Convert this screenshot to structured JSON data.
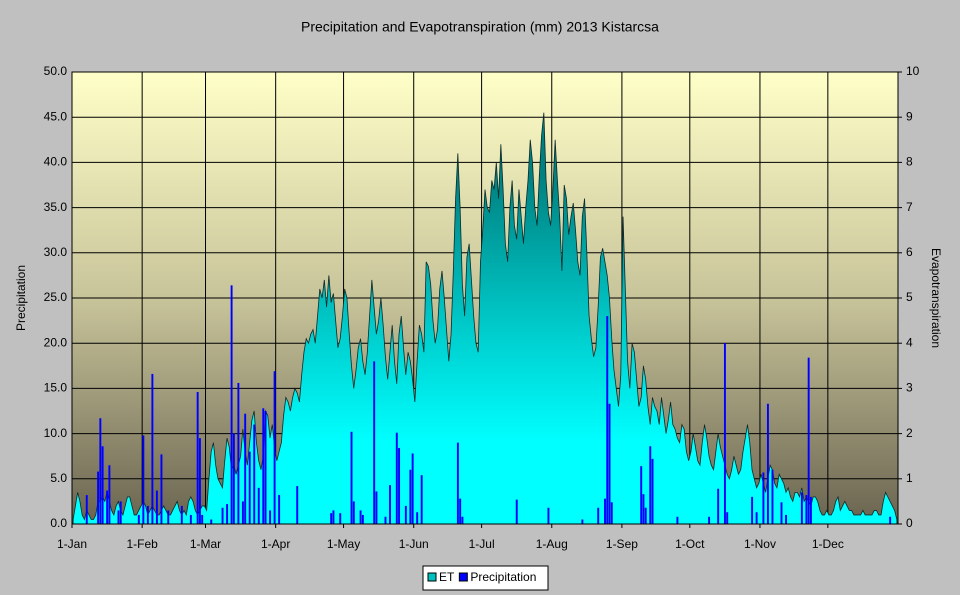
{
  "chart_data": {
    "type": "area-bar",
    "title": "Precipitation and Evapotranspiration (mm) 2013 Kistarcsa",
    "y_label": "Precipitation",
    "y2_label": "Evapotranspiration",
    "xlim": [
      1,
      366
    ],
    "xticks": [
      {
        "value": 1,
        "label": "1-Jan"
      },
      {
        "value": 32,
        "label": "1-Feb"
      },
      {
        "value": 60,
        "label": "1-Mar"
      },
      {
        "value": 91,
        "label": "1-Apr"
      },
      {
        "value": 121,
        "label": "1-May"
      },
      {
        "value": 152,
        "label": "1-Jun"
      },
      {
        "value": 182,
        "label": "1-Jul"
      },
      {
        "value": 213,
        "label": "1-Aug"
      },
      {
        "value": 244,
        "label": "1-Sep"
      },
      {
        "value": 274,
        "label": "1-Oct"
      },
      {
        "value": 305,
        "label": "1-Nov"
      },
      {
        "value": 335,
        "label": "1-Dec"
      }
    ],
    "ylim": [
      0,
      50
    ],
    "yticks": [
      {
        "value": 0,
        "label": "0.0"
      },
      {
        "value": 5,
        "label": "5.0"
      },
      {
        "value": 10,
        "label": "10.0"
      },
      {
        "value": 15,
        "label": "15.0"
      },
      {
        "value": 20,
        "label": "20.0"
      },
      {
        "value": 25,
        "label": "25.0"
      },
      {
        "value": 30,
        "label": "30.0"
      },
      {
        "value": 35,
        "label": "35.0"
      },
      {
        "value": 40,
        "label": "40.0"
      },
      {
        "value": 45,
        "label": "45.0"
      },
      {
        "value": 50,
        "label": "50.0"
      }
    ],
    "y2lim": [
      0,
      10
    ],
    "y2ticks": [
      0,
      1,
      2,
      3,
      4,
      5,
      6,
      7,
      8,
      9,
      10
    ],
    "grid": true,
    "legend": "bottom",
    "x": [
      1,
      2,
      3,
      4,
      5,
      6,
      7,
      8,
      9,
      10,
      11,
      12,
      13,
      14,
      15,
      16,
      17,
      18,
      19,
      20,
      21,
      22,
      23,
      24,
      25,
      26,
      27,
      28,
      29,
      30,
      31,
      32,
      33,
      34,
      35,
      36,
      37,
      38,
      39,
      40,
      41,
      42,
      43,
      44,
      45,
      46,
      47,
      48,
      49,
      50,
      51,
      52,
      53,
      54,
      55,
      56,
      57,
      58,
      59,
      60,
      61,
      62,
      63,
      64,
      65,
      66,
      67,
      68,
      69,
      70,
      71,
      72,
      73,
      74,
      75,
      76,
      77,
      78,
      79,
      80,
      81,
      82,
      83,
      84,
      85,
      86,
      87,
      88,
      89,
      90,
      91,
      92,
      93,
      94,
      95,
      96,
      97,
      98,
      99,
      100,
      101,
      102,
      103,
      104,
      105,
      106,
      107,
      108,
      109,
      110,
      111,
      112,
      113,
      114,
      115,
      116,
      117,
      118,
      119,
      120,
      121,
      122,
      123,
      124,
      125,
      126,
      127,
      128,
      129,
      130,
      131,
      132,
      133,
      134,
      135,
      136,
      137,
      138,
      139,
      140,
      141,
      142,
      143,
      144,
      145,
      146,
      147,
      148,
      149,
      150,
      151,
      152,
      153,
      154,
      155,
      156,
      157,
      158,
      159,
      160,
      161,
      162,
      163,
      164,
      165,
      166,
      167,
      168,
      169,
      170,
      171,
      172,
      173,
      174,
      175,
      176,
      177,
      178,
      179,
      180,
      181,
      182,
      183,
      184,
      185,
      186,
      187,
      188,
      189,
      190,
      191,
      192,
      193,
      194,
      195,
      196,
      197,
      198,
      199,
      200,
      201,
      202,
      203,
      204,
      205,
      206,
      207,
      208,
      209,
      210,
      211,
      212,
      213,
      214,
      215,
      216,
      217,
      218,
      219,
      220,
      221,
      222,
      223,
      224,
      225,
      226,
      227,
      228,
      229,
      230,
      231,
      232,
      233,
      234,
      235,
      236,
      237,
      238,
      239,
      240,
      241,
      242,
      243,
      244,
      245,
      246,
      247,
      248,
      249,
      250,
      251,
      252,
      253,
      254,
      255,
      256,
      257,
      258,
      259,
      260,
      261,
      262,
      263,
      264,
      265,
      266,
      267,
      268,
      269,
      270,
      271,
      272,
      273,
      274,
      275,
      276,
      277,
      278,
      279,
      280,
      281,
      282,
      283,
      284,
      285,
      286,
      287,
      288,
      289,
      290,
      291,
      292,
      293,
      294,
      295,
      296,
      297,
      298,
      299,
      300,
      301,
      302,
      303,
      304,
      305,
      306,
      307,
      308,
      309,
      310,
      311,
      312,
      313,
      314,
      315,
      316,
      317,
      318,
      319,
      320,
      321,
      322,
      323,
      324,
      325,
      326,
      327,
      328,
      329,
      330,
      331,
      332,
      333,
      334,
      335,
      336,
      337,
      338,
      339,
      340,
      341,
      342,
      343,
      344,
      345,
      346,
      347,
      348,
      349,
      350,
      351,
      352,
      353,
      354,
      355,
      356,
      357,
      358,
      359,
      360,
      361,
      362,
      363,
      364,
      365
    ],
    "series": [
      {
        "name": "ET",
        "color": "#00c0c0",
        "axis": "y2",
        "values": [
          0.1,
          0.4,
          0.7,
          0.5,
          0.2,
          0.1,
          0.3,
          0.2,
          0.1,
          0.1,
          0.2,
          0.5,
          0.5,
          0.6,
          0.5,
          0.7,
          0.5,
          0.3,
          0.2,
          0.4,
          0.5,
          0.3,
          0.2,
          0.4,
          0.6,
          0.6,
          0.4,
          0.2,
          0.2,
          0.3,
          0.4,
          0.5,
          0.4,
          0.2,
          0.3,
          0.4,
          0.3,
          0.2,
          0.2,
          0.3,
          0.4,
          0.3,
          0.2,
          0.2,
          0.3,
          0.4,
          0.5,
          0.3,
          0.2,
          0.3,
          0.2,
          0.5,
          0.6,
          0.5,
          0.3,
          0.2,
          0.3,
          0.4,
          0.4,
          0.3,
          1.0,
          1.6,
          1.8,
          1.3,
          1.0,
          0.9,
          0.8,
          1.4,
          1.9,
          1.7,
          1.2,
          1.3,
          1.1,
          1.3,
          1.5,
          2.1,
          1.6,
          1.3,
          1.8,
          2.3,
          2.5,
          1.8,
          1.4,
          1.2,
          1.5,
          2.5,
          2.4,
          1.9,
          2.2,
          1.7,
          1.4,
          1.6,
          1.8,
          2.4,
          2.8,
          2.7,
          2.5,
          2.8,
          3.0,
          2.9,
          2.7,
          3.3,
          3.8,
          4.1,
          4.0,
          4.2,
          4.3,
          4.0,
          4.6,
          5.2,
          5.0,
          5.4,
          4.8,
          5.5,
          4.9,
          5.1,
          4.5,
          3.9,
          4.1,
          4.6,
          5.2,
          5.0,
          4.2,
          3.5,
          3.0,
          3.4,
          3.9,
          4.1,
          3.6,
          3.3,
          3.8,
          4.6,
          5.4,
          4.8,
          4.2,
          4.5,
          5.0,
          4.4,
          3.7,
          3.2,
          3.8,
          4.4,
          3.6,
          3.1,
          4.2,
          4.6,
          3.9,
          3.3,
          3.8,
          3.6,
          3.2,
          2.7,
          3.6,
          4.4,
          4.2,
          3.8,
          5.8,
          5.7,
          5.3,
          4.5,
          4.0,
          4.3,
          5.2,
          5.6,
          5.0,
          4.3,
          3.6,
          4.2,
          5.6,
          7.2,
          8.2,
          7.0,
          5.3,
          4.6,
          5.9,
          6.2,
          5.4,
          4.6,
          4.0,
          3.8,
          5.8,
          6.5,
          7.4,
          7.0,
          6.9,
          7.6,
          7.4,
          8.0,
          7.2,
          8.4,
          7.4,
          6.2,
          5.8,
          7.0,
          7.6,
          6.6,
          6.3,
          7.4,
          6.8,
          6.2,
          7.0,
          7.6,
          8.5,
          8.0,
          7.0,
          6.6,
          7.7,
          8.6,
          9.1,
          7.6,
          6.9,
          6.6,
          7.4,
          8.5,
          7.6,
          6.8,
          5.6,
          7.5,
          7.2,
          6.4,
          6.8,
          7.1,
          6.5,
          5.8,
          5.5,
          6.8,
          7.2,
          6.0,
          4.6,
          4.1,
          3.7,
          3.9,
          4.8,
          5.9,
          6.1,
          5.8,
          5.5,
          5.0,
          4.1,
          3.4,
          3.0,
          2.6,
          3.3,
          6.8,
          5.2,
          3.6,
          3.0,
          4.0,
          3.8,
          3.2,
          2.6,
          2.8,
          3.5,
          3.2,
          2.6,
          2.2,
          2.8,
          2.6,
          2.5,
          2.2,
          2.8,
          2.4,
          2.0,
          2.3,
          2.7,
          2.2,
          2.1,
          1.9,
          1.8,
          2.2,
          2.1,
          1.6,
          1.4,
          1.6,
          2.0,
          1.7,
          1.4,
          1.3,
          1.8,
          2.2,
          1.9,
          1.5,
          1.3,
          1.2,
          1.6,
          2.0,
          1.7,
          1.5,
          1.3,
          1.1,
          1.0,
          1.2,
          1.5,
          1.3,
          1.1,
          1.2,
          1.6,
          1.9,
          2.2,
          1.8,
          1.2,
          1.0,
          0.8,
          0.9,
          1.1,
          0.9,
          0.7,
          1.0,
          1.3,
          1.2,
          0.9,
          0.8,
          1.1,
          1.0,
          0.9,
          0.7,
          0.8,
          0.6,
          0.5,
          0.7,
          0.7,
          0.6,
          0.8,
          0.5,
          0.6,
          0.5,
          0.4,
          0.6,
          0.6,
          0.5,
          0.3,
          0.2,
          0.2,
          0.3,
          0.2,
          0.2,
          0.3,
          0.5,
          0.6,
          0.3,
          0.4,
          0.5,
          0.4,
          0.3,
          0.3,
          0.2,
          0.2,
          0.2,
          0.2,
          0.3,
          0.2,
          0.2,
          0.2,
          0.2,
          0.3,
          0.3,
          0.2,
          0.2,
          0.5,
          0.7,
          0.6,
          0.5,
          0.4,
          0.3,
          0.1
        ]
      },
      {
        "name": "Precipitation",
        "color": "#0000ff",
        "values": [
          0,
          0,
          0,
          0,
          0,
          0,
          3.2,
          0,
          0,
          0,
          0,
          5.8,
          11.7,
          8.6,
          0,
          3.7,
          6.5,
          0,
          0,
          0,
          1.5,
          2.5,
          0,
          0,
          0,
          0,
          0,
          0,
          0,
          1.0,
          0,
          9.8,
          0,
          2.0,
          0,
          16.6,
          0,
          3.7,
          0,
          7.7,
          0,
          0,
          1.5,
          0,
          0,
          0,
          0,
          0,
          2.0,
          0,
          0,
          0,
          1.0,
          0,
          0,
          14.6,
          9.5,
          1.0,
          0,
          0,
          0,
          0.5,
          0,
          0,
          0,
          0,
          1.8,
          0,
          2.2,
          0,
          26.4,
          10.0,
          0,
          15.6,
          0,
          2.5,
          12.2,
          0,
          8.0,
          0,
          11.0,
          0,
          4.0,
          0,
          12.8,
          12.5,
          0,
          1.5,
          0,
          16.9,
          0,
          3.2,
          0,
          0,
          0,
          0,
          0,
          0,
          0,
          4.2,
          0,
          0,
          0,
          0,
          0,
          0,
          0,
          0,
          0,
          0,
          0,
          0,
          0,
          0,
          1.2,
          1.5,
          0,
          0,
          1.2,
          0,
          0,
          0,
          0,
          10.2,
          2.5,
          0,
          0,
          1.5,
          1.0,
          0,
          0,
          0,
          0,
          18.0,
          3.6,
          0,
          0,
          0,
          0.8,
          0,
          4.3,
          0,
          0,
          10.1,
          8.4,
          0,
          0,
          2.0,
          0,
          6.0,
          7.8,
          0,
          1.3,
          0,
          5.4,
          0,
          0,
          0,
          0,
          0,
          0,
          0,
          0,
          0,
          0,
          0,
          0,
          0,
          0,
          0,
          9.0,
          2.8,
          0.8,
          0,
          0,
          0,
          0,
          0,
          0,
          0,
          0,
          0,
          0,
          0,
          0,
          0,
          0,
          0,
          0,
          0,
          0,
          0,
          0,
          0,
          0,
          0,
          2.7,
          0,
          0,
          0,
          0,
          0,
          0,
          0,
          0,
          0,
          0,
          0,
          0,
          0,
          1.8,
          0,
          0,
          0,
          0,
          0,
          0,
          0,
          0,
          0,
          0,
          0,
          0,
          0,
          0,
          0.5,
          0,
          0,
          0,
          0,
          0,
          0,
          1.8,
          0,
          0,
          2.8,
          23.0,
          13.3,
          2.4,
          0,
          0,
          0,
          0,
          0,
          0,
          0,
          0,
          0,
          0,
          0,
          0,
          6.4,
          3.3,
          1.8,
          0,
          8.6,
          7.2,
          0,
          0,
          0,
          0,
          0,
          0,
          0,
          0,
          0,
          0,
          0.8,
          0,
          0,
          0,
          0,
          0,
          0,
          0,
          0,
          0,
          0,
          0,
          0,
          0,
          0.8,
          0,
          0,
          0,
          3.9,
          0,
          0,
          20.0,
          1.3,
          0,
          0,
          0,
          0,
          0,
          0,
          0,
          0,
          0,
          0,
          3.0,
          0,
          1.3,
          0,
          0,
          5.7,
          0,
          13.3,
          0,
          6.0,
          0,
          0,
          0,
          2.4,
          0,
          1.0,
          0,
          0,
          0,
          0,
          0,
          0,
          3.5,
          0,
          3.2,
          18.4,
          3.0,
          0,
          0,
          0,
          0,
          0,
          0,
          0,
          0,
          0,
          0,
          0,
          0,
          0,
          0,
          0,
          0,
          0,
          0,
          0,
          0,
          0,
          0,
          0,
          0,
          0,
          0,
          0,
          0,
          0,
          0,
          0,
          0,
          0,
          0,
          0.8,
          0,
          0,
          0
        ]
      }
    ]
  }
}
